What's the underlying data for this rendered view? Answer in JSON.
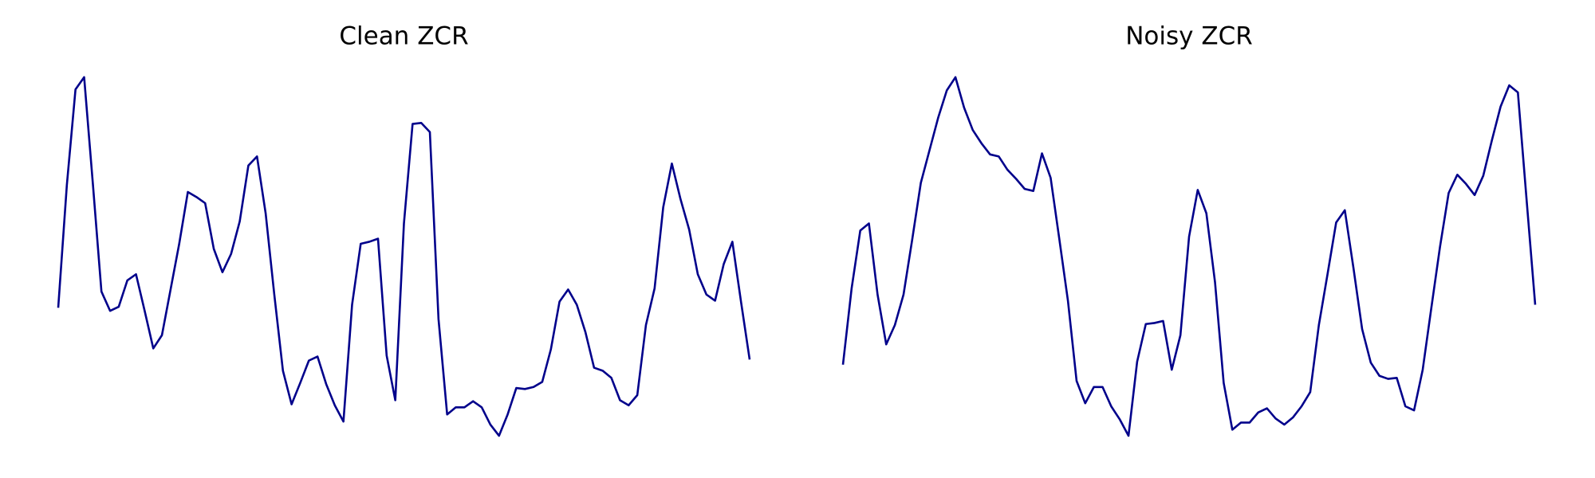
{
  "chart_data": [
    {
      "type": "line",
      "title": "Clean ZCR",
      "color": "#00008b",
      "ylim": [
        0,
        380
      ],
      "values": [
        137,
        258,
        352,
        364,
        260,
        153,
        134,
        138,
        164,
        170,
        134,
        97,
        110,
        155,
        200,
        251,
        246,
        240,
        195,
        172,
        190,
        222,
        277,
        286,
        230,
        150,
        75,
        42,
        63,
        85,
        89,
        62,
        41,
        25,
        140,
        200,
        202,
        205,
        90,
        46,
        220,
        318,
        319,
        310,
        126,
        32,
        39,
        39,
        45,
        39,
        22,
        11,
        32,
        58,
        57,
        59,
        64,
        96,
        143,
        155,
        140,
        113,
        78,
        75,
        68,
        46,
        41,
        51,
        120,
        156,
        236,
        279,
        244,
        214,
        170,
        150,
        144,
        180,
        202,
        143,
        86
      ]
    },
    {
      "type": "line",
      "title": "Noisy ZCR",
      "color": "#00008b",
      "ylim": [
        0,
        380
      ],
      "values": [
        81,
        156,
        213,
        220,
        150,
        101,
        120,
        150,
        204,
        260,
        292,
        324,
        351,
        364,
        334,
        312,
        299,
        288,
        286,
        273,
        264,
        254,
        252,
        289,
        265,
        205,
        144,
        65,
        43,
        59,
        59,
        40,
        27,
        11,
        84,
        121,
        122,
        124,
        76,
        110,
        207,
        253,
        230,
        162,
        63,
        17,
        24,
        24,
        34,
        38,
        28,
        22,
        29,
        40,
        54,
        120,
        170,
        221,
        233,
        176,
        116,
        83,
        70,
        67,
        68,
        40,
        36,
        76,
        137,
        197,
        250,
        268,
        259,
        248,
        267,
        302,
        335,
        356,
        349,
        244,
        140
      ]
    }
  ]
}
